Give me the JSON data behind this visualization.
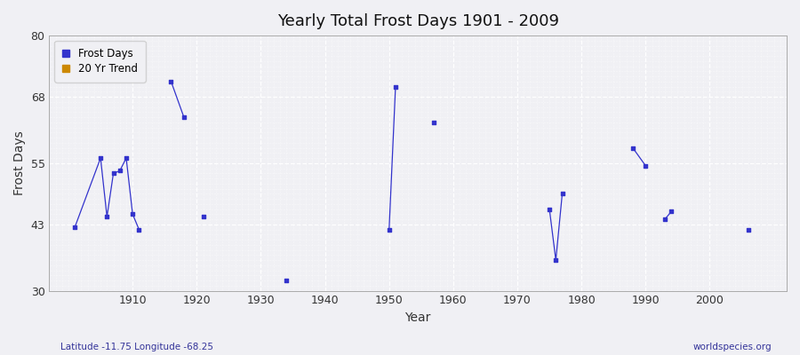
{
  "title": "Yearly Total Frost Days 1901 - 2009",
  "xlabel": "Year",
  "ylabel": "Frost Days",
  "xlim": [
    1897,
    2012
  ],
  "ylim": [
    30,
    80
  ],
  "yticks": [
    30,
    43,
    55,
    68,
    80
  ],
  "xticks": [
    1910,
    1920,
    1930,
    1940,
    1950,
    1960,
    1970,
    1980,
    1990,
    2000
  ],
  "bg_color": "#f0f0f4",
  "line_color": "#3333cc",
  "marker_color": "#3333cc",
  "data_years": [
    1901,
    1905,
    1906,
    1907,
    1908,
    1909,
    1910,
    1911,
    1916,
    1918,
    1921,
    1934,
    1950,
    1951,
    1957,
    1975,
    1976,
    1977,
    1988,
    1990,
    1993,
    1994,
    2006
  ],
  "data_values": [
    42.5,
    56,
    44.5,
    53,
    53.5,
    56,
    45,
    42,
    71,
    64,
    44.5,
    32,
    42,
    70,
    63,
    46,
    36,
    49,
    58,
    54.5,
    44,
    45.5,
    42
  ],
  "connected_groups": [
    [
      0,
      1,
      2,
      3,
      4,
      5,
      6,
      7
    ],
    [
      8,
      9
    ],
    [
      12,
      13
    ],
    [
      15,
      16,
      17
    ],
    [
      18,
      19
    ],
    [
      20,
      21
    ]
  ],
  "annotation_lat": "Latitude -11.75 Longitude -68.25",
  "annotation_web": "worldspecies.org",
  "legend_frost_color": "#3333cc",
  "legend_trend_color": "#cc8800",
  "footer_color": "#333399"
}
